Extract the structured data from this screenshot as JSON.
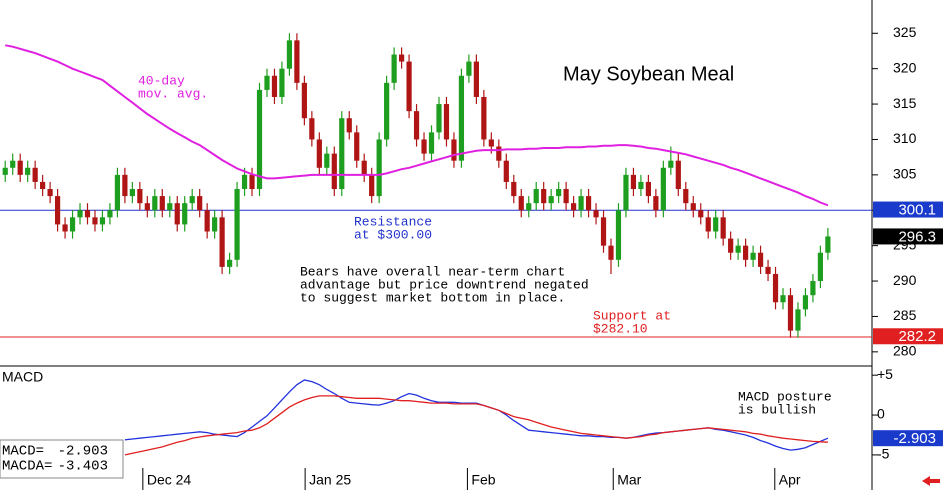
{
  "chart_data": [
    {
      "type": "candlestick",
      "title": "May Soybean Meal",
      "open": [
        305,
        306,
        307,
        305,
        306,
        304,
        303,
        302,
        298,
        297,
        299,
        300,
        299,
        298,
        299,
        300,
        305,
        302,
        303,
        301,
        300,
        302,
        300,
        301,
        298,
        301,
        302,
        300,
        297,
        299,
        292,
        293,
        303,
        305,
        303,
        317,
        319,
        316,
        320,
        324,
        318,
        313,
        310,
        306,
        308,
        303,
        313,
        311,
        307,
        305,
        302,
        310,
        318,
        322,
        321,
        314,
        310,
        308,
        311,
        315,
        310,
        307,
        319,
        321,
        316,
        310,
        309,
        307,
        304,
        302,
        300,
        301,
        303,
        301,
        302,
        303,
        301,
        300,
        302,
        300,
        299,
        295,
        293,
        300,
        305,
        303,
        304,
        302,
        300,
        306,
        307,
        303,
        301,
        300,
        299,
        297,
        299,
        296,
        294,
        295,
        293,
        294,
        292,
        291,
        287,
        288,
        283,
        286,
        288,
        290,
        294
      ],
      "high": [
        307,
        308,
        308,
        307,
        307,
        305,
        304,
        303,
        299,
        300,
        301,
        301,
        300,
        300,
        301,
        306,
        306,
        304,
        304,
        302,
        303,
        303,
        302,
        302,
        302,
        303,
        303,
        301,
        300,
        300,
        294,
        304,
        306,
        306,
        318,
        320,
        320,
        321,
        325,
        325,
        319,
        314,
        311,
        309,
        309,
        314,
        314,
        312,
        308,
        306,
        311,
        319,
        323,
        323,
        322,
        315,
        311,
        312,
        316,
        316,
        311,
        320,
        322,
        322,
        317,
        311,
        310,
        308,
        305,
        303,
        302,
        304,
        304,
        303,
        304,
        304,
        302,
        303,
        303,
        301,
        300,
        296,
        301,
        306,
        306,
        305,
        305,
        303,
        307,
        309,
        308,
        304,
        302,
        301,
        300,
        300,
        300,
        297,
        296,
        296,
        295,
        295,
        293,
        292,
        289,
        289,
        287,
        289,
        291,
        295,
        297.5
      ],
      "low": [
        304,
        305,
        304,
        304,
        303,
        302,
        301,
        297,
        296,
        296,
        298,
        298,
        297,
        297,
        298,
        299,
        301,
        301,
        300,
        299,
        299,
        299,
        299,
        297,
        297,
        300,
        299,
        296,
        296,
        291,
        291,
        292,
        302,
        302,
        302,
        316,
        315,
        315,
        319,
        317,
        312,
        309,
        305,
        305,
        302,
        302,
        310,
        306,
        304,
        301,
        301,
        309,
        317,
        320,
        313,
        309,
        307,
        307,
        310,
        309,
        306,
        306,
        318,
        315,
        309,
        308,
        306,
        303,
        301,
        299,
        299,
        300,
        300,
        300,
        301,
        300,
        299,
        299,
        299,
        298,
        294,
        291,
        292,
        299,
        302,
        302,
        301,
        299,
        299,
        305,
        302,
        300,
        299,
        298,
        296,
        296,
        295,
        293,
        293,
        292,
        292,
        291,
        290,
        286,
        286,
        282,
        282,
        285,
        287,
        289,
        293
      ],
      "close": [
        306,
        307,
        305,
        306,
        304,
        303,
        302,
        298,
        297,
        299,
        300,
        299,
        298,
        299,
        300,
        305,
        302,
        303,
        301,
        300,
        302,
        300,
        301,
        298,
        301,
        302,
        300,
        297,
        299,
        292,
        293,
        303,
        305,
        303,
        317,
        319,
        316,
        320,
        324,
        318,
        313,
        310,
        306,
        308,
        303,
        313,
        311,
        307,
        305,
        302,
        310,
        318,
        322,
        321,
        314,
        310,
        308,
        311,
        315,
        310,
        307,
        319,
        321,
        316,
        310,
        309,
        307,
        304,
        302,
        300,
        301,
        303,
        301,
        302,
        303,
        301,
        300,
        302,
        300,
        299,
        295,
        293,
        300,
        305,
        303,
        304,
        302,
        300,
        306,
        307,
        303,
        301,
        300,
        299,
        297,
        299,
        296,
        294,
        295,
        293,
        294,
        292,
        291,
        287,
        288,
        283,
        286,
        288,
        290,
        294,
        296.3
      ],
      "up_color": "#1e9e1e",
      "down_color": "#b01515",
      "last_value_box": "#000000",
      "overlays": [
        {
          "label_lines": [
            "40-day",
            "mov. avg."
          ],
          "color": "#e020e0",
          "values": [
            323.3,
            323.1,
            322.8,
            322.5,
            322.2,
            321.8,
            321.4,
            321.0,
            320.5,
            320.0,
            319.6,
            319.2,
            318.8,
            318.4,
            317.6,
            316.8,
            316.0,
            315.2,
            314.4,
            313.6,
            312.9,
            312.2,
            311.5,
            310.9,
            310.3,
            309.7,
            309.2,
            308.5,
            307.8,
            307.1,
            306.5,
            305.9,
            305.5,
            305.1,
            304.8,
            304.5,
            304.5,
            304.6,
            304.7,
            304.8,
            304.9,
            305.0,
            305.0,
            305.0,
            305.0,
            305.0,
            305.0,
            305.0,
            305.0,
            305.0,
            305.0,
            305.2,
            305.5,
            305.8,
            306.0,
            306.3,
            306.6,
            306.9,
            307.2,
            307.5,
            307.8,
            308.0,
            308.2,
            308.4,
            308.5,
            308.5,
            308.5,
            308.6,
            308.6,
            308.6,
            308.7,
            308.7,
            308.8,
            308.8,
            308.8,
            308.9,
            308.9,
            308.9,
            309.0,
            309.0,
            309.1,
            309.1,
            309.2,
            309.2,
            309.1,
            309.0,
            308.8,
            308.7,
            308.5,
            308.3,
            308.1,
            307.9,
            307.6,
            307.3,
            307.0,
            306.7,
            306.4,
            306.0,
            305.7,
            305.3,
            304.9,
            304.5,
            304.1,
            303.7,
            303.3,
            302.9,
            302.5,
            302.0,
            301.6,
            301.1,
            300.7
          ]
        }
      ],
      "hlines": [
        {
          "value": 300,
          "color": "#2233cc",
          "label_lines": [
            "Resistance",
            "at $300.00"
          ]
        },
        {
          "value": 282.1,
          "color": "#e02020",
          "label_lines": [
            "Support at",
            "$282.10"
          ]
        }
      ],
      "price_markers": [
        {
          "value": 300.1,
          "color": "#1a3acc"
        },
        {
          "value": 282.2,
          "color": "#e02020"
        }
      ],
      "annotation_lines": [
        "Bears have overall near-term chart",
        "advantage but price downtrend negated",
        "to suggest market bottom in place."
      ],
      "xlim": [
        -0.7,
        115.9
      ],
      "ylim": [
        278,
        329.7
      ],
      "yticks": [
        280,
        285,
        290,
        295,
        300,
        305,
        310,
        315,
        320,
        325
      ],
      "xticks": [
        {
          "value": 18.4,
          "label": "Dec 24"
        },
        {
          "value": 40.1,
          "label": "Jan 25"
        },
        {
          "value": 61.8,
          "label": "Feb"
        },
        {
          "value": 81.3,
          "label": "Mar"
        },
        {
          "value": 102.9,
          "label": "Apr"
        }
      ]
    },
    {
      "type": "line",
      "title": "MACD",
      "series": [
        {
          "name": "MACD=",
          "color": "#2233dd",
          "last_value_box": "#1a3acc",
          "values": [
            null,
            null,
            null,
            null,
            null,
            null,
            null,
            null,
            null,
            null,
            null,
            null,
            null,
            null,
            null,
            null,
            -3.1,
            -3.0,
            -2.9,
            -2.8,
            -2.7,
            -2.6,
            -2.5,
            -2.4,
            -2.3,
            -2.2,
            -2.1,
            -2.2,
            -2.4,
            -2.5,
            -2.6,
            -2.7,
            -2.2,
            -1.5,
            -0.8,
            -0.1,
            0.9,
            1.9,
            2.9,
            3.8,
            4.4,
            4.2,
            3.8,
            3.2,
            2.7,
            2.1,
            1.6,
            1.5,
            1.4,
            1.3,
            1.25,
            1.5,
            1.8,
            2.3,
            2.7,
            2.5,
            2.1,
            1.8,
            1.6,
            1.6,
            1.6,
            1.5,
            1.5,
            1.5,
            1.2,
            0.9,
            0.6,
            0.0,
            -0.7,
            -1.3,
            -1.9,
            -2.0,
            -2.1,
            -2.2,
            -2.3,
            -2.4,
            -2.5,
            -2.6,
            -2.6,
            -2.7,
            -2.7,
            -2.8,
            -2.8,
            -2.9,
            -2.8,
            -2.6,
            -2.4,
            -2.25,
            -2.2,
            -2.1,
            -2.0,
            -1.9,
            -1.8,
            -1.7,
            -1.6,
            -1.8,
            -1.9,
            -2.1,
            -2.3,
            -2.5,
            -2.8,
            -3.2,
            -3.5,
            -3.9,
            -4.2,
            -4.4,
            -4.3,
            -4.1,
            -3.7,
            -3.3,
            -2.903
          ]
        },
        {
          "name": "MACDA=",
          "color": "#e02020",
          "values": [
            null,
            null,
            null,
            null,
            null,
            null,
            null,
            null,
            null,
            null,
            null,
            null,
            null,
            null,
            null,
            null,
            -5.0,
            -4.8,
            -4.6,
            -4.4,
            -4.2,
            -4.0,
            -3.7,
            -3.4,
            -3.2,
            -2.9,
            -2.75,
            -2.6,
            -2.5,
            -2.4,
            -2.3,
            -2.2,
            -2.0,
            -1.9,
            -1.6,
            -1.1,
            -0.4,
            0.3,
            1.0,
            1.5,
            1.9,
            2.2,
            2.4,
            2.4,
            2.4,
            2.3,
            2.2,
            2.1,
            2.1,
            2.1,
            2.1,
            2.0,
            1.9,
            1.8,
            1.8,
            1.7,
            1.6,
            1.5,
            1.5,
            1.5,
            1.4,
            1.4,
            1.4,
            1.4,
            1.2,
            0.9,
            0.6,
            0.2,
            -0.2,
            -0.4,
            -0.6,
            -0.9,
            -1.2,
            -1.5,
            -1.7,
            -1.9,
            -2.1,
            -2.3,
            -2.4,
            -2.5,
            -2.6,
            -2.7,
            -2.8,
            -2.9,
            -2.8,
            -2.7,
            -2.5,
            -2.4,
            -2.2,
            -2.1,
            -2.0,
            -1.9,
            -1.8,
            -1.7,
            -1.6,
            -1.7,
            -1.8,
            -1.9,
            -2.0,
            -2.1,
            -2.3,
            -2.4,
            -2.6,
            -2.75,
            -2.9,
            -3.0,
            -3.1,
            -3.2,
            -3.3,
            -3.35,
            -3.403
          ]
        }
      ],
      "annotation_lines": [
        "MACD posture",
        "is bullish"
      ],
      "ylim": [
        -9.4,
        5.9
      ],
      "yticks": [
        {
          "value": 5,
          "label": "+5"
        },
        0,
        -5
      ]
    }
  ]
}
